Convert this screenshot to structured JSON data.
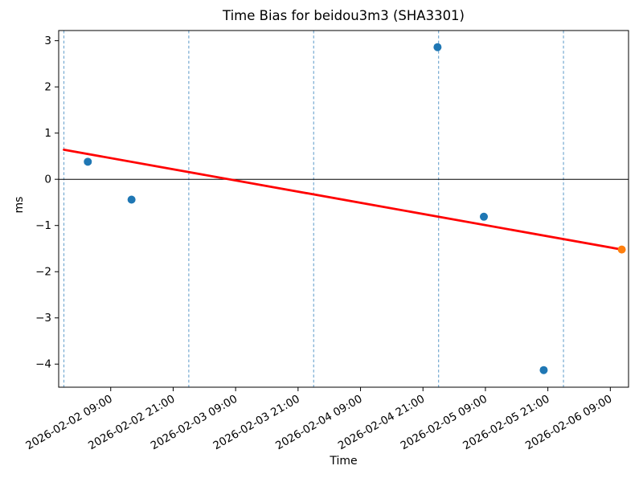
{
  "chart_data": {
    "type": "scatter",
    "title": "Time Bias for beidou3m3 (SHA3301)",
    "xlabel": "Time",
    "ylabel": "ms",
    "x_unit_hours_since": "2026-02-02 00:00",
    "xlim_hours": [
      -1.0,
      108.5
    ],
    "ylim": [
      -4.5,
      3.22
    ],
    "grid": "vertical-day-boundaries-only",
    "legend": "none",
    "y_ticks": [
      3,
      2,
      1,
      0,
      -1,
      -2,
      -3,
      -4
    ],
    "x_ticks": [
      {
        "hours": 9,
        "label": "2026-02-02 09:00"
      },
      {
        "hours": 21,
        "label": "2026-02-02 21:00"
      },
      {
        "hours": 33,
        "label": "2026-02-03 09:00"
      },
      {
        "hours": 45,
        "label": "2026-02-03 21:00"
      },
      {
        "hours": 57,
        "label": "2026-02-04 09:00"
      },
      {
        "hours": 69,
        "label": "2026-02-04 21:00"
      },
      {
        "hours": 81,
        "label": "2026-02-05 09:00"
      },
      {
        "hours": 93,
        "label": "2026-02-05 21:00"
      },
      {
        "hours": 105,
        "label": "2026-02-06 09:00"
      }
    ],
    "day_boundary_lines_hours": [
      0,
      24,
      48,
      72,
      96
    ],
    "zero_line_ms": 0,
    "colors": {
      "scatter": "#1f77b4",
      "latest_point": "#ff7f0e",
      "trend_line": "#ff0000",
      "day_boundary": "#74a9d1",
      "zero_line": "#000000",
      "axes": "#000000"
    },
    "series": [
      {
        "name": "trend-fit",
        "type": "line",
        "color_key": "trend_line",
        "points": [
          {
            "hours": 0.0,
            "ms": 0.64
          },
          {
            "hours": 107.2,
            "ms": -1.52
          }
        ]
      },
      {
        "name": "bias-measurement",
        "type": "scatter",
        "color_key": "scatter",
        "points": [
          {
            "hours": 4.6,
            "ms": 0.38
          },
          {
            "hours": 13.0,
            "ms": -0.44
          },
          {
            "hours": 71.8,
            "ms": 2.86
          },
          {
            "hours": 80.7,
            "ms": -0.81
          },
          {
            "hours": 92.2,
            "ms": -4.13
          }
        ]
      },
      {
        "name": "latest-measurement",
        "type": "scatter",
        "color_key": "latest_point",
        "points": [
          {
            "hours": 107.2,
            "ms": -1.52
          }
        ]
      }
    ]
  }
}
